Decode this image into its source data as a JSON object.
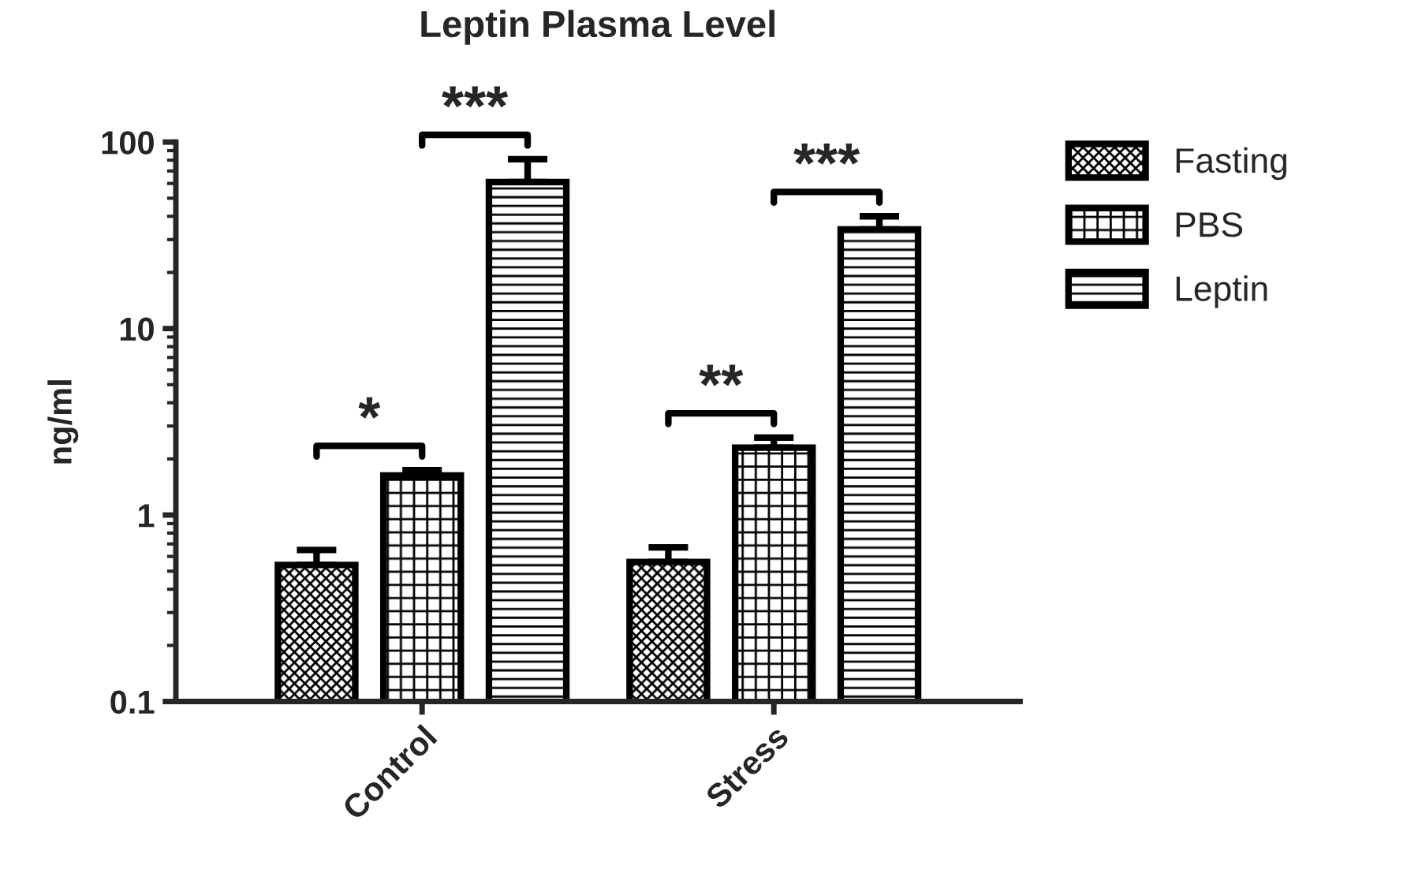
{
  "chart_data": {
    "type": "bar",
    "title": "Leptin Plasma Level",
    "ylabel": "ng/ml",
    "categories": [
      "Control",
      "Stress"
    ],
    "series": [
      {
        "name": "Fasting",
        "color": "#000000",
        "values": [
          0.54,
          0.56
        ],
        "errors": [
          [
            0.54,
            0.65
          ],
          [
            0.56,
            0.67
          ]
        ]
      },
      {
        "name": "PBS",
        "color": "#000000",
        "values": [
          1.63,
          2.3
        ],
        "errors": [
          [
            1.63,
            1.74
          ],
          [
            2.3,
            2.6
          ]
        ]
      },
      {
        "name": "Leptin",
        "color": "#000000",
        "values": [
          61,
          34
        ],
        "errors": [
          [
            61,
            81
          ],
          [
            34,
            40
          ]
        ]
      }
    ],
    "log": "y",
    "ylim": [
      0.1,
      100
    ],
    "yticks": [
      0.1,
      1,
      10,
      100
    ],
    "grid": false,
    "legend": "right",
    "annotations": [
      "*",
      "***",
      "**",
      "***"
    ]
  }
}
